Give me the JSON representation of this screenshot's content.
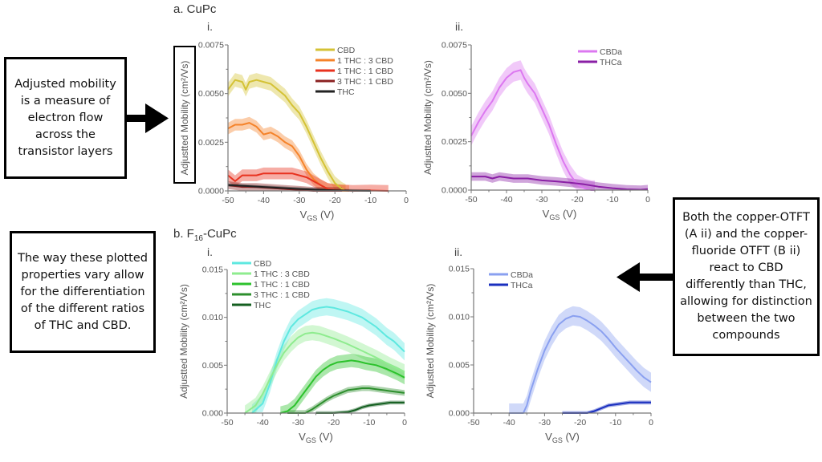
{
  "sections": {
    "a": {
      "title": "a. CuPc"
    },
    "b": {
      "title_prefix": "b. F",
      "title_sub": "16",
      "title_suffix": "-CuPc"
    }
  },
  "annotations": {
    "left_top": "Adjusted mobility is a measure of electron flow across the transistor layers",
    "left_bottom": "The way these plotted properties vary allow for the differentiation of the different ratios of THC and CBD.",
    "right": "Both the copper-OTFT (A ii) and the copper-fluoride OTFT (B ii) react to CBD differently than THC, allowing for distinction between the two compounds"
  },
  "chart_data": [
    {
      "id": "a-i",
      "panel_label": "i.",
      "type": "line",
      "xlabel": "V_GS (V)",
      "ylabel": "Adjustted Mobility (cm²/Vs)",
      "xlim": [
        -50,
        0
      ],
      "ylim": [
        0,
        0.0075
      ],
      "xticks": [
        -50,
        -40,
        -30,
        -20,
        -10,
        0
      ],
      "yticks": [
        0.0,
        0.0025,
        0.005,
        0.0075
      ],
      "ytick_labels": [
        "0.0000",
        "0.0025",
        "0.0050",
        "0.0075"
      ],
      "legend_position": "top-right",
      "series": [
        {
          "name": "CBD",
          "color": "#d4c235",
          "band": 0.00035,
          "x": [
            -50,
            -48,
            -46,
            -45,
            -44,
            -42,
            -40,
            -38,
            -36,
            -34,
            -32,
            -30,
            -28,
            -26,
            -24,
            -22,
            -20,
            -18,
            -17
          ],
          "y": [
            0.0052,
            0.0057,
            0.0056,
            0.0052,
            0.0056,
            0.0057,
            0.0056,
            0.0055,
            0.0052,
            0.0049,
            0.0044,
            0.004,
            0.0033,
            0.0025,
            0.0017,
            0.001,
            0.0004,
            0.0001,
            0.0
          ]
        },
        {
          "name": "1 THC : 3 CBD",
          "color": "#f5832a",
          "band": 0.0003,
          "x": [
            -50,
            -48,
            -46,
            -44,
            -42,
            -40,
            -38,
            -36,
            -34,
            -32,
            -30,
            -28,
            -26,
            -24,
            -22,
            -20,
            -18,
            -16
          ],
          "y": [
            0.0032,
            0.0034,
            0.0034,
            0.0035,
            0.0033,
            0.0029,
            0.003,
            0.0028,
            0.0025,
            0.0023,
            0.0018,
            0.0011,
            0.0006,
            0.0003,
            0.0001,
            3e-05,
            0.0,
            0.0
          ]
        },
        {
          "name": "1 THC : 1 CBD",
          "color": "#e8321f",
          "band": 0.0003,
          "x": [
            -50,
            -48,
            -46,
            -44,
            -42,
            -40,
            -38,
            -36,
            -34,
            -32,
            -30,
            -28,
            -26,
            -24,
            -22,
            -20,
            -18,
            -15,
            -10,
            -5
          ],
          "y": [
            0.0008,
            0.0005,
            0.0008,
            0.0008,
            0.0008,
            0.0009,
            0.0009,
            0.0009,
            0.0009,
            0.0009,
            0.0008,
            0.0007,
            0.0005,
            0.0003,
            0.0001,
            5e-05,
            3e-05,
            0.0,
            2e-05,
            0.0
          ]
        },
        {
          "name": "3 THC : 1 CBD",
          "color": "#8b2222",
          "band": 0.0002,
          "x": [
            -50,
            -46,
            -42,
            -38,
            -34,
            -30,
            -26,
            -22,
            -18
          ],
          "y": [
            0.0003,
            0.0002,
            0.0002,
            0.00015,
            0.0001,
            5e-05,
            0.0,
            0.0,
            0.0
          ]
        },
        {
          "name": "THC",
          "color": "#222222",
          "band": 8e-05,
          "x": [
            -50,
            -45,
            -40,
            -35,
            -30,
            -25,
            -20,
            -15,
            -10
          ],
          "y": [
            0.0003,
            0.00025,
            0.0002,
            0.00015,
            0.0001,
            6e-05,
            3e-05,
            1e-05,
            0.0
          ]
        }
      ]
    },
    {
      "id": "a-ii",
      "panel_label": "ii.",
      "type": "line",
      "xlabel": "V_GS (V)",
      "ylabel": "Adjustted Mobility (cm²/Vs)",
      "xlim": [
        -50,
        0
      ],
      "ylim": [
        0,
        0.0075
      ],
      "xticks": [
        -50,
        -40,
        -30,
        -20,
        -10,
        0
      ],
      "yticks": [
        0.0,
        0.0025,
        0.005,
        0.0075
      ],
      "ytick_labels": [
        "0.0000",
        "0.0025",
        "0.0050",
        "0.0075"
      ],
      "legend_position": "top-right",
      "series": [
        {
          "name": "CBDa",
          "color": "#dc78f0",
          "band": 0.0005,
          "x": [
            -50,
            -48,
            -46,
            -44,
            -42,
            -40,
            -38,
            -36,
            -35,
            -34,
            -32,
            -30,
            -28,
            -26,
            -24,
            -22,
            -20,
            -18,
            -16,
            -15
          ],
          "y": [
            0.0028,
            0.0035,
            0.0041,
            0.0046,
            0.0053,
            0.0058,
            0.0061,
            0.0062,
            0.0058,
            0.0055,
            0.005,
            0.0042,
            0.0034,
            0.0024,
            0.0015,
            0.0008,
            0.0003,
            0.0001,
            0.0,
            0.0
          ]
        },
        {
          "name": "THCa",
          "color": "#8a1fa5",
          "band": 0.00022,
          "x": [
            -50,
            -46,
            -44,
            -42,
            -38,
            -34,
            -30,
            -26,
            -22,
            -18,
            -14,
            -10,
            -6,
            -2,
            0
          ],
          "y": [
            0.0007,
            0.0007,
            0.0006,
            0.0007,
            0.0006,
            0.0006,
            0.0005,
            0.00045,
            0.00038,
            0.0003,
            0.00018,
            0.0001,
            4e-05,
            2e-05,
            5e-05
          ]
        }
      ]
    },
    {
      "id": "b-i",
      "panel_label": "i.",
      "type": "line",
      "xlabel": "V_GS (V)",
      "ylabel": "Adjustted Mobility (cm²/Vs)",
      "xlim": [
        -50,
        0
      ],
      "ylim": [
        0,
        0.015
      ],
      "xticks": [
        -50,
        -40,
        -30,
        -20,
        -10,
        0
      ],
      "yticks": [
        0.0,
        0.005,
        0.01,
        0.015
      ],
      "ytick_labels": [
        "0.000",
        "0.005",
        "0.010",
        "0.015"
      ],
      "legend_position": "top-left",
      "series": [
        {
          "name": "CBD",
          "color": "#5ee8e0",
          "band": 0.0009,
          "x": [
            -43,
            -40,
            -38,
            -36,
            -34,
            -32,
            -30,
            -28,
            -26,
            -24,
            -22,
            -20,
            -16,
            -12,
            -8,
            -5,
            -3,
            0
          ],
          "y": [
            0.0,
            0.001,
            0.003,
            0.0055,
            0.0075,
            0.009,
            0.0098,
            0.0103,
            0.0108,
            0.011,
            0.0111,
            0.011,
            0.0106,
            0.01,
            0.009,
            0.008,
            0.0075,
            0.0064
          ]
        },
        {
          "name": "1 THC : 3 CBD",
          "color": "#8fec8f",
          "band": 0.0008,
          "x": [
            -45,
            -42,
            -40,
            -38,
            -36,
            -34,
            -32,
            -30,
            -28,
            -26,
            -24,
            -20,
            -16,
            -12,
            -8,
            -4,
            0
          ],
          "y": [
            0.0,
            0.0008,
            0.002,
            0.0035,
            0.005,
            0.0063,
            0.0072,
            0.0079,
            0.0083,
            0.0084,
            0.0083,
            0.0078,
            0.0072,
            0.0065,
            0.0058,
            0.005,
            0.0043
          ]
        },
        {
          "name": "1 THC : 1 CBD",
          "color": "#2cc22c",
          "band": 0.0007,
          "x": [
            -35,
            -33,
            -31,
            -29,
            -27,
            -25,
            -23,
            -21,
            -19,
            -17,
            -15,
            -13,
            -11,
            -8,
            -5,
            -2,
            0
          ],
          "y": [
            0.0,
            0.0002,
            0.0008,
            0.0018,
            0.0028,
            0.0038,
            0.0045,
            0.005,
            0.0053,
            0.0054,
            0.0055,
            0.0054,
            0.0052,
            0.005,
            0.0046,
            0.0041,
            0.0037
          ]
        },
        {
          "name": "3 THC : 1 CBD",
          "color": "#2d8f2d",
          "band": 0.0003,
          "x": [
            -33,
            -28,
            -26,
            -24,
            -22,
            -20,
            -18,
            -16,
            -14,
            -12,
            -10,
            -8,
            -6,
            -4,
            -2,
            0
          ],
          "y": [
            0.0,
            0.0,
            0.0004,
            0.0009,
            0.0014,
            0.0018,
            0.0021,
            0.0024,
            0.0025,
            0.0026,
            0.0026,
            0.0025,
            0.0024,
            0.0023,
            0.0022,
            0.0021
          ]
        },
        {
          "name": "THC",
          "color": "#145f20",
          "band": 0.0002,
          "x": [
            -25,
            -20,
            -16,
            -14,
            -12,
            -10,
            -8,
            -6,
            -4,
            -2,
            0
          ],
          "y": [
            0.0,
            0.0,
            0.0001,
            0.0003,
            0.0006,
            0.0008,
            0.0009,
            0.001,
            0.0011,
            0.0011,
            0.0011
          ]
        }
      ]
    },
    {
      "id": "b-ii",
      "panel_label": "ii.",
      "type": "line",
      "xlabel": "V_GS (V)",
      "ylabel": "Adjustted Mobility (cm²/Vs)",
      "xlim": [
        -50,
        0
      ],
      "ylim": [
        0,
        0.015
      ],
      "xticks": [
        -50,
        -40,
        -30,
        -20,
        -10,
        0
      ],
      "yticks": [
        0.0,
        0.005,
        0.01,
        0.015
      ],
      "ytick_labels": [
        "0.000",
        "0.005",
        "0.010",
        "0.015"
      ],
      "legend_position": "top-left",
      "series": [
        {
          "name": "CBDa",
          "color": "#8aa0f0",
          "band": 0.001,
          "x": [
            -40,
            -36,
            -35,
            -34,
            -32,
            -30,
            -28,
            -26,
            -24,
            -22,
            -20,
            -18,
            -16,
            -14,
            -12,
            -10,
            -8,
            -6,
            -4,
            -2,
            0
          ],
          "y": [
            0.0,
            0.0,
            0.0008,
            0.0022,
            0.0045,
            0.0065,
            0.008,
            0.0092,
            0.0098,
            0.0101,
            0.01,
            0.0096,
            0.0091,
            0.0085,
            0.0077,
            0.0068,
            0.006,
            0.0052,
            0.0044,
            0.0037,
            0.0032
          ]
        },
        {
          "name": "THCa",
          "color": "#1a2fbf",
          "band": 0.0002,
          "x": [
            -25,
            -20,
            -18,
            -16,
            -14,
            -12,
            -10,
            -8,
            -6,
            -4,
            -2,
            0
          ],
          "y": [
            0.0,
            0.0,
            0.0,
            0.0002,
            0.0005,
            0.0008,
            0.0009,
            0.001,
            0.0011,
            0.0011,
            0.0011,
            0.0011
          ]
        }
      ]
    }
  ]
}
